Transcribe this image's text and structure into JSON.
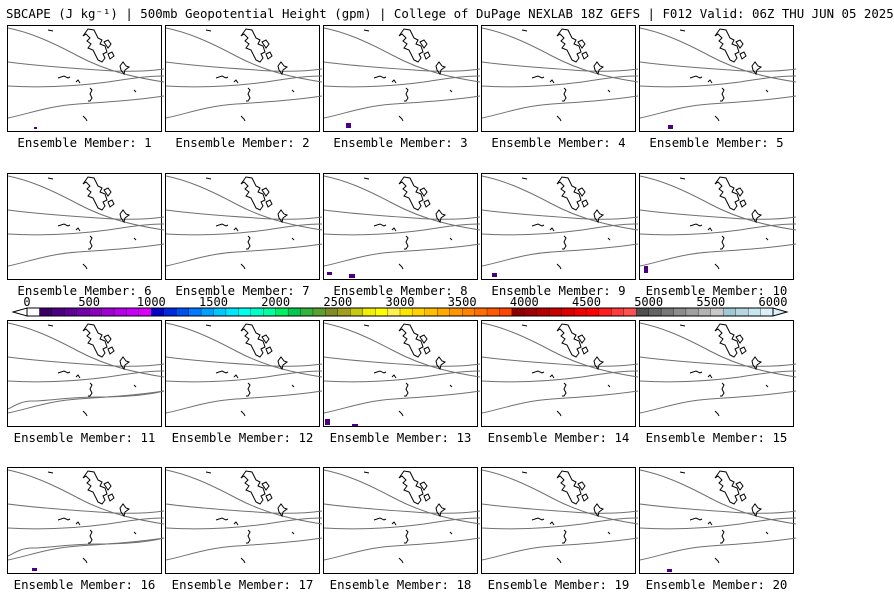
{
  "title": "SBCAPE (J kg⁻¹) | 500mb Geopotential Height (gpm) | College of DuPage NEXLAB 18Z GEFS | F012 Valid: 06Z THU JUN 05 2025",
  "colorbar": {
    "tick_labels": [
      "0",
      "500",
      "1000",
      "1500",
      "2000",
      "2500",
      "3000",
      "3500",
      "4000",
      "4500",
      "5000",
      "5500",
      "6000"
    ],
    "colors": [
      "#ffffff",
      "#3a0066",
      "#4b0082",
      "#5e0096",
      "#7300aa",
      "#8a00be",
      "#a000d2",
      "#b400e6",
      "#c800fa",
      "#dc00fa",
      "#0000c8",
      "#0028dc",
      "#0050f0",
      "#0078ff",
      "#00a0ff",
      "#00c8ff",
      "#00e6ff",
      "#00fff0",
      "#00ffc8",
      "#00ffa0",
      "#00f064",
      "#00c850",
      "#32b43c",
      "#5aa032",
      "#808c28",
      "#a0a01e",
      "#c8c814",
      "#f0f000",
      "#ffff00",
      "#fff050",
      "#ffe600",
      "#ffd200",
      "#ffbe00",
      "#ffaa00",
      "#ff9600",
      "#ff8200",
      "#ff6e00",
      "#ff5a00",
      "#ff4600",
      "#8c0000",
      "#a00000",
      "#b40000",
      "#c80000",
      "#dc0000",
      "#f00000",
      "#ff0000",
      "#ff1e1e",
      "#ff3c3c",
      "#ff5050",
      "#505050",
      "#646464",
      "#787878",
      "#8c8c8c",
      "#a0a0a0",
      "#b4b4b4",
      "#c8c8c8",
      "#a0c8d2",
      "#b4d7e1",
      "#c8e6f0",
      "#dcf0fa"
    ]
  },
  "members": [
    {
      "label": "Ensemble Member: 1"
    },
    {
      "label": "Ensemble Member: 2"
    },
    {
      "label": "Ensemble Member: 3"
    },
    {
      "label": "Ensemble Member: 4"
    },
    {
      "label": "Ensemble Member: 5"
    },
    {
      "label": "Ensemble Member: 6"
    },
    {
      "label": "Ensemble Member: 7"
    },
    {
      "label": "Ensemble Member: 8"
    },
    {
      "label": "Ensemble Member: 9"
    },
    {
      "label": "Ensemble Member: 10"
    },
    {
      "label": "Ensemble Member: 11"
    },
    {
      "label": "Ensemble Member: 12"
    },
    {
      "label": "Ensemble Member: 13"
    },
    {
      "label": "Ensemble Member: 14"
    },
    {
      "label": "Ensemble Member: 15"
    },
    {
      "label": "Ensemble Member: 16"
    },
    {
      "label": "Ensemble Member: 17"
    },
    {
      "label": "Ensemble Member: 18"
    },
    {
      "label": "Ensemble Member: 19"
    },
    {
      "label": "Ensemble Member: 20"
    }
  ],
  "colors": {
    "contour": "#707070",
    "coastline": "#000000",
    "cape_low": "#4b0082"
  }
}
